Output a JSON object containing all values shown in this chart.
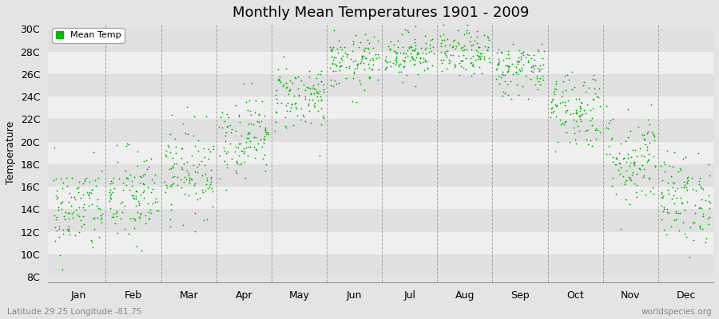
{
  "title": "Monthly Mean Temperatures 1901 - 2009",
  "ylabel": "Temperature",
  "ytick_labels": [
    "8C",
    "10C",
    "12C",
    "14C",
    "16C",
    "18C",
    "20C",
    "22C",
    "24C",
    "26C",
    "28C",
    "30C"
  ],
  "ytick_values": [
    8,
    10,
    12,
    14,
    16,
    18,
    20,
    22,
    24,
    26,
    28,
    30
  ],
  "ylim": [
    7.5,
    30.5
  ],
  "months": [
    "Jan",
    "Feb",
    "Mar",
    "Apr",
    "May",
    "Jun",
    "Jul",
    "Aug",
    "Sep",
    "Oct",
    "Nov",
    "Dec"
  ],
  "month_means": [
    14.0,
    15.0,
    17.5,
    20.5,
    24.0,
    27.0,
    27.8,
    27.8,
    26.5,
    23.0,
    18.5,
    15.0
  ],
  "month_stds": [
    2.0,
    2.2,
    2.0,
    1.8,
    1.5,
    1.2,
    1.0,
    1.0,
    1.2,
    1.8,
    2.2,
    2.0
  ],
  "n_years": 109,
  "dot_color": "#00bb00",
  "dot_size": 3,
  "legend_label": "Mean Temp",
  "bg_color": "#e4e4e4",
  "strip_light": "#efefef",
  "strip_dark": "#e0e0e0",
  "grid_color": "#888888",
  "title_fontsize": 13,
  "label_fontsize": 9,
  "tick_fontsize": 9,
  "footer_left": "Latitude 29.25 Longitude -81.75",
  "footer_right": "worldspecies.org",
  "random_seed": 42
}
